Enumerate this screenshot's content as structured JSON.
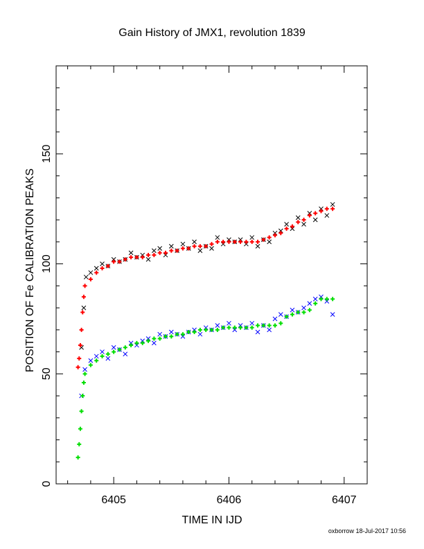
{
  "chart_data": {
    "type": "scatter",
    "title": "Gain History of JMX1, revolution 1839",
    "xlabel": "TIME IN IJD",
    "ylabel": "POSITION OF Fe CALIBRATION PEAKS",
    "footer": "oxborrow 18-Jul-2017 10:56",
    "xlim": [
      6404.5,
      6407.2
    ],
    "ylim": [
      0,
      190
    ],
    "xticks": [
      6405,
      6406,
      6407
    ],
    "yticks": [
      0,
      50,
      100,
      150
    ],
    "grid": false,
    "legend": "none",
    "series": [
      {
        "marker": "x",
        "color": "#000000",
        "x": [
          6404.72,
          6404.74,
          6404.76,
          6404.8,
          6404.85,
          6404.9,
          6404.95,
          6405.0,
          6405.05,
          6405.1,
          6405.15,
          6405.2,
          6405.25,
          6405.3,
          6405.35,
          6405.4,
          6405.45,
          6405.5,
          6405.55,
          6405.6,
          6405.65,
          6405.7,
          6405.75,
          6405.8,
          6405.85,
          6405.9,
          6405.95,
          6406.0,
          6406.05,
          6406.1,
          6406.15,
          6406.2,
          6406.25,
          6406.3,
          6406.35,
          6406.4,
          6406.45,
          6406.5,
          6406.55,
          6406.6,
          6406.65,
          6406.7,
          6406.75,
          6406.8,
          6406.85,
          6406.9
        ],
        "values": [
          62,
          80,
          94,
          96,
          98,
          100,
          99,
          102,
          101,
          102,
          105,
          103,
          104,
          102,
          106,
          107,
          104,
          108,
          106,
          109,
          107,
          110,
          106,
          108,
          107,
          112,
          109,
          111,
          110,
          111,
          109,
          112,
          108,
          111,
          110,
          114,
          115,
          118,
          116,
          121,
          118,
          123,
          120,
          125,
          122,
          127
        ]
      },
      {
        "marker": "+",
        "color": "#ff0000",
        "x": [
          6404.69,
          6404.7,
          6404.71,
          6404.72,
          6404.73,
          6404.74,
          6404.75,
          6404.8,
          6404.85,
          6404.9,
          6404.95,
          6405.0,
          6405.05,
          6405.1,
          6405.15,
          6405.2,
          6405.25,
          6405.3,
          6405.35,
          6405.4,
          6405.45,
          6405.5,
          6405.55,
          6405.6,
          6405.65,
          6405.7,
          6405.75,
          6405.8,
          6405.85,
          6405.9,
          6405.95,
          6406.0,
          6406.05,
          6406.1,
          6406.15,
          6406.2,
          6406.25,
          6406.3,
          6406.35,
          6406.4,
          6406.45,
          6406.5,
          6406.55,
          6406.6,
          6406.65,
          6406.7,
          6406.75,
          6406.8,
          6406.85,
          6406.9
        ],
        "values": [
          53,
          57,
          63,
          70,
          78,
          85,
          90,
          93,
          96,
          98,
          99,
          101,
          101,
          102,
          103,
          103,
          103,
          104,
          104,
          105,
          105,
          106,
          106,
          107,
          107,
          108,
          108,
          108,
          109,
          110,
          110,
          110,
          110,
          110,
          110,
          110,
          110,
          111,
          112,
          113,
          114,
          116,
          117,
          119,
          120,
          122,
          123,
          124,
          125,
          125
        ]
      },
      {
        "marker": "x",
        "color": "#0000ff",
        "x": [
          6404.72,
          6404.75,
          6404.8,
          6404.85,
          6404.9,
          6404.95,
          6405.0,
          6405.05,
          6405.1,
          6405.15,
          6405.2,
          6405.25,
          6405.3,
          6405.35,
          6405.4,
          6405.45,
          6405.5,
          6405.55,
          6405.6,
          6405.65,
          6405.7,
          6405.75,
          6405.8,
          6405.85,
          6405.9,
          6405.95,
          6406.0,
          6406.05,
          6406.1,
          6406.15,
          6406.2,
          6406.25,
          6406.3,
          6406.35,
          6406.4,
          6406.45,
          6406.5,
          6406.55,
          6406.6,
          6406.65,
          6406.7,
          6406.75,
          6406.8,
          6406.85,
          6406.9
        ],
        "values": [
          40,
          52,
          56,
          58,
          60,
          57,
          62,
          61,
          59,
          64,
          63,
          65,
          66,
          64,
          68,
          67,
          69,
          68,
          67,
          69,
          70,
          68,
          71,
          70,
          72,
          71,
          73,
          70,
          72,
          71,
          73,
          69,
          72,
          70,
          75,
          77,
          76,
          79,
          78,
          80,
          82,
          84,
          85,
          83,
          77
        ]
      },
      {
        "marker": "+",
        "color": "#00dd00",
        "x": [
          6404.69,
          6404.7,
          6404.71,
          6404.72,
          6404.73,
          6404.74,
          6404.75,
          6404.8,
          6404.85,
          6404.9,
          6404.95,
          6405.0,
          6405.05,
          6405.1,
          6405.15,
          6405.2,
          6405.25,
          6405.3,
          6405.35,
          6405.4,
          6405.45,
          6405.5,
          6405.55,
          6405.6,
          6405.65,
          6405.7,
          6405.75,
          6405.8,
          6405.85,
          6405.9,
          6405.95,
          6406.0,
          6406.05,
          6406.1,
          6406.15,
          6406.2,
          6406.25,
          6406.3,
          6406.35,
          6406.4,
          6406.45,
          6406.5,
          6406.55,
          6406.6,
          6406.65,
          6406.7,
          6406.75,
          6406.8,
          6406.85,
          6406.9
        ],
        "values": [
          12,
          18,
          25,
          33,
          40,
          46,
          50,
          54,
          56,
          58,
          59,
          60,
          61,
          62,
          63,
          64,
          64,
          65,
          66,
          66,
          67,
          67,
          68,
          68,
          69,
          69,
          70,
          70,
          70,
          70,
          71,
          71,
          71,
          71,
          71,
          71,
          72,
          72,
          72,
          72,
          73,
          76,
          77,
          78,
          78,
          79,
          82,
          84,
          84,
          84
        ]
      }
    ]
  }
}
